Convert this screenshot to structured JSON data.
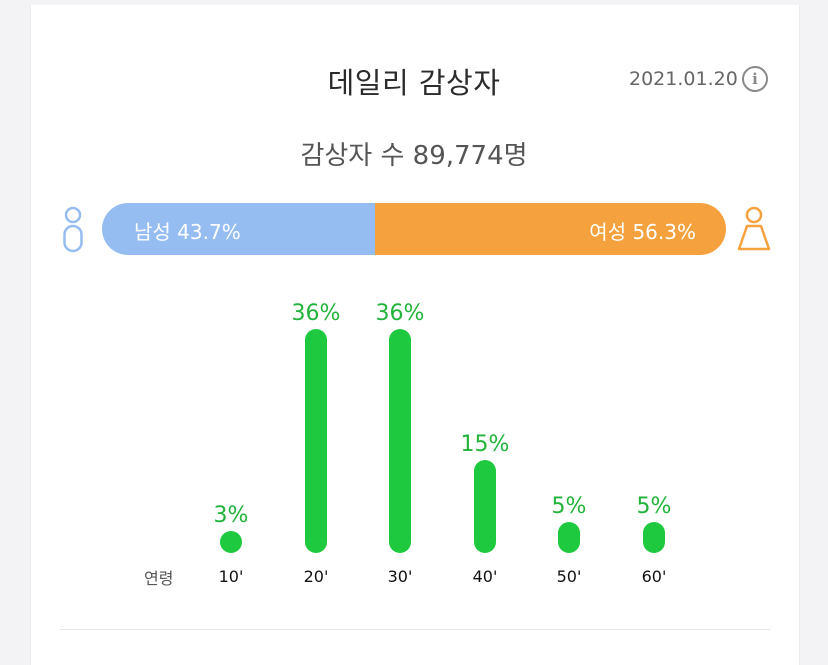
{
  "header": {
    "title": "데일리 감상자",
    "date": "2021.01.20",
    "info_icon": "info-icon"
  },
  "summary": {
    "viewers_text": "감상자 수 89,774명"
  },
  "gender": {
    "male_label": "남성 43.7%",
    "female_label": "여성 56.3%",
    "male_share": 43.7,
    "female_share": 56.3,
    "male_color": "#96bdf2",
    "female_color": "#f5a13d",
    "male_icon": "male-person-icon",
    "female_icon": "female-person-icon"
  },
  "chart_data": {
    "type": "bar",
    "title": "",
    "xlabel": "연령",
    "ylabel": "",
    "categories": [
      "10'",
      "20'",
      "30'",
      "40'",
      "50'",
      "60'"
    ],
    "values": [
      3,
      36,
      36,
      15,
      5,
      5
    ],
    "value_labels": [
      "3%",
      "36%",
      "36%",
      "15%",
      "5%",
      "5%"
    ],
    "ylim": [
      0,
      36
    ],
    "grid": false,
    "bar_color": "#1ec93f",
    "label_color": "#22b33a"
  }
}
